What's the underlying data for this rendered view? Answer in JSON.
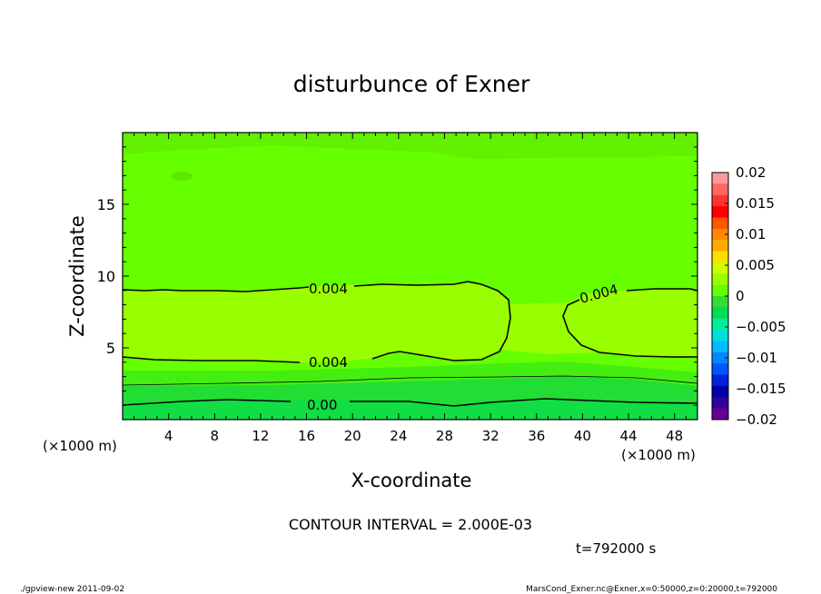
{
  "chart_data": {
    "type": "contour",
    "title": "disturbunce of Exner",
    "xlabel": "X-coordinate",
    "ylabel": "Z-coordinate",
    "x_unit": "(×1000 m)",
    "y_unit": "(×1000 m)",
    "xlim": [
      0,
      50
    ],
    "ylim": [
      0,
      20
    ],
    "x_ticks": [
      "4",
      "8",
      "12",
      "16",
      "20",
      "24",
      "28",
      "32",
      "36",
      "40",
      "44",
      "48"
    ],
    "y_ticks": [
      "5",
      "10",
      "15"
    ],
    "colorbar": {
      "ticks": [
        "0.02",
        "0.015",
        "0.01",
        "0.005",
        "0",
        "−0.005",
        "−0.01",
        "−0.015",
        "−0.02"
      ],
      "colors": [
        "#ff9999",
        "#ff6666",
        "#ff3333",
        "#ff0000",
        "#ff5500",
        "#ff8800",
        "#ffaa00",
        "#ffdd00",
        "#ccff00",
        "#99ff00",
        "#66ff00",
        "#33dd33",
        "#00dd55",
        "#00ee99",
        "#00dddd",
        "#00bbff",
        "#0088ff",
        "#0055ff",
        "#0022dd",
        "#0000aa",
        "#330099",
        "#660099"
      ]
    },
    "contour_labels": [
      "0.004",
      "0.004",
      "0.004",
      "0.00"
    ],
    "contour_interval": "CONTOUR INTERVAL = 2.000E-03",
    "time_label": "t=792000 s",
    "footer_left": "./gpview-new  2011-09-02",
    "footer_right": "MarsCond_Exner.nc@Exner,x=0:50000,z=0:20000,t=792000"
  }
}
